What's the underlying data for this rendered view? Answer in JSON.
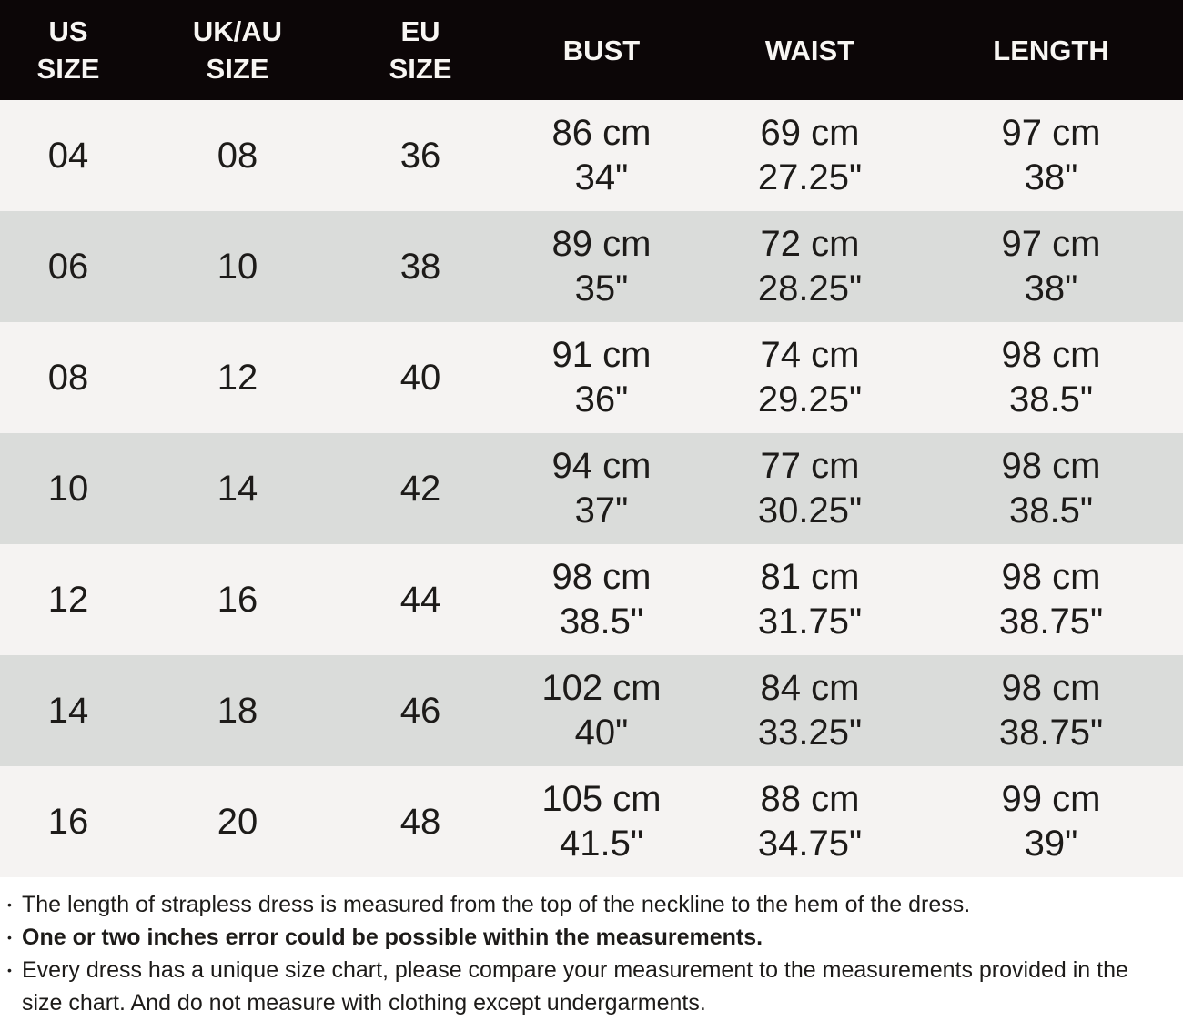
{
  "colors": {
    "header_bg": "#0c0607",
    "header_text": "#f8f6f3",
    "row_light_bg": "#f5f3f2",
    "row_dark_bg": "#dadcda",
    "body_text": "#1d1b19",
    "notes_bg": "#ffffff"
  },
  "chart_data": {
    "type": "table",
    "column_labels": [
      "US SIZE",
      "UK/AU SIZE",
      "EU SIZE",
      "BUST",
      "WAIST",
      "LENGTH"
    ],
    "columns": [
      [
        "US",
        "SIZE"
      ],
      [
        "UK/AU",
        "SIZE"
      ],
      [
        "EU",
        "SIZE"
      ],
      [
        "BUST"
      ],
      [
        "WAIST"
      ],
      [
        "LENGTH"
      ]
    ],
    "rows": [
      {
        "us": "04",
        "uk_au": "08",
        "eu": "36",
        "bust": {
          "cm": "86 cm",
          "in": "34\""
        },
        "waist": {
          "cm": "69 cm",
          "in": "27.25\""
        },
        "length": {
          "cm": "97 cm",
          "in": "38\""
        }
      },
      {
        "us": "06",
        "uk_au": "10",
        "eu": "38",
        "bust": {
          "cm": "89 cm",
          "in": "35\""
        },
        "waist": {
          "cm": "72 cm",
          "in": "28.25\""
        },
        "length": {
          "cm": "97 cm",
          "in": "38\""
        }
      },
      {
        "us": "08",
        "uk_au": "12",
        "eu": "40",
        "bust": {
          "cm": "91 cm",
          "in": "36\""
        },
        "waist": {
          "cm": "74 cm",
          "in": "29.25\""
        },
        "length": {
          "cm": "98 cm",
          "in": "38.5\""
        }
      },
      {
        "us": "10",
        "uk_au": "14",
        "eu": "42",
        "bust": {
          "cm": "94 cm",
          "in": "37\""
        },
        "waist": {
          "cm": "77 cm",
          "in": "30.25\""
        },
        "length": {
          "cm": "98 cm",
          "in": "38.5\""
        }
      },
      {
        "us": "12",
        "uk_au": "16",
        "eu": "44",
        "bust": {
          "cm": "98 cm",
          "in": "38.5\""
        },
        "waist": {
          "cm": "81 cm",
          "in": "31.75\""
        },
        "length": {
          "cm": "98 cm",
          "in": "38.75\""
        }
      },
      {
        "us": "14",
        "uk_au": "18",
        "eu": "46",
        "bust": {
          "cm": "102 cm",
          "in": "40\""
        },
        "waist": {
          "cm": "84 cm",
          "in": "33.25\""
        },
        "length": {
          "cm": "98 cm",
          "in": "38.75\""
        }
      },
      {
        "us": "16",
        "uk_au": "20",
        "eu": "48",
        "bust": {
          "cm": "105 cm",
          "in": "41.5\""
        },
        "waist": {
          "cm": "88 cm",
          "in": "34.75\""
        },
        "length": {
          "cm": "99 cm",
          "in": "39\""
        }
      }
    ]
  },
  "notes": {
    "bullet": "•",
    "items": [
      {
        "text": "The length of strapless dress is measured from the top of the neckline to the hem of the dress.",
        "emphasis": "normal"
      },
      {
        "text": "One or two inches error could be possible within the measurements.",
        "emphasis": "bold"
      },
      {
        "text": "Every dress has a unique size chart, please compare your measurement to the measurements provided in the size chart. And do not measure with clothing except undergarments.",
        "emphasis": "normal"
      }
    ]
  }
}
